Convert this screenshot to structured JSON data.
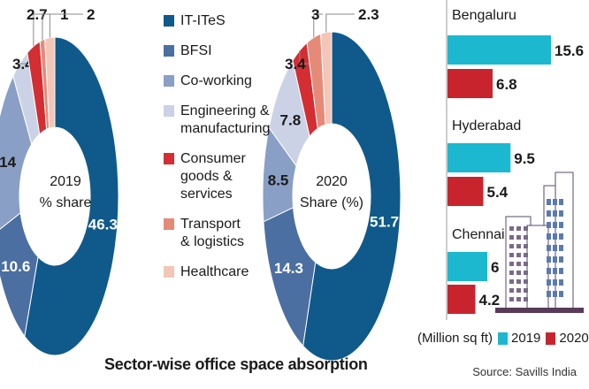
{
  "chart_data": [
    {
      "type": "pie",
      "style": "donut",
      "center_label": [
        "2019",
        "% share"
      ],
      "categories": [
        "IT-ITeS",
        "BFSI",
        "Co-working",
        "Engineering & manufacturing",
        "Consumer goods & services",
        "Transport & logistics",
        "Healthcare"
      ],
      "values": [
        46.3,
        10.6,
        14,
        3.4,
        2.7,
        1,
        2
      ]
    },
    {
      "type": "pie",
      "style": "donut",
      "center_label": [
        "2020",
        "Share (%)"
      ],
      "categories": [
        "IT-ITeS",
        "BFSI",
        "Co-working",
        "Engineering & manufacturing",
        "Consumer goods & services",
        "Transport & logistics",
        "Healthcare"
      ],
      "values": [
        51.7,
        14.3,
        8.5,
        7.8,
        3.4,
        3,
        2.3
      ]
    },
    {
      "type": "bar",
      "orientation": "horizontal",
      "categories": [
        "Bengaluru",
        "Hyderabad",
        "Chennai"
      ],
      "series": [
        {
          "name": "2019",
          "values": [
            15.6,
            9.5,
            6
          ],
          "color": "#1bb8cf"
        },
        {
          "name": "2020",
          "values": [
            6.8,
            5.4,
            4.2
          ],
          "color": "#c8242e"
        }
      ],
      "unit_label": "(Million sq ft)"
    }
  ],
  "legend": [
    {
      "label": "IT-ITeS",
      "color": "#0f5a8a"
    },
    {
      "label": "BFSI",
      "color": "#4b6fa1"
    },
    {
      "label": "Co-working",
      "color": "#8a9fc5"
    },
    {
      "label": "Engineering & manufacturing",
      "color": "#cbd2e5"
    },
    {
      "label": "Consumer goods & services",
      "color": "#d42d32"
    },
    {
      "label": "Transport & logistics",
      "color": "#e68a78"
    },
    {
      "label": "Healthcare",
      "color": "#f3c6b8"
    }
  ],
  "title": "Sector-wise office space absorption",
  "source": "Source: Savills India"
}
